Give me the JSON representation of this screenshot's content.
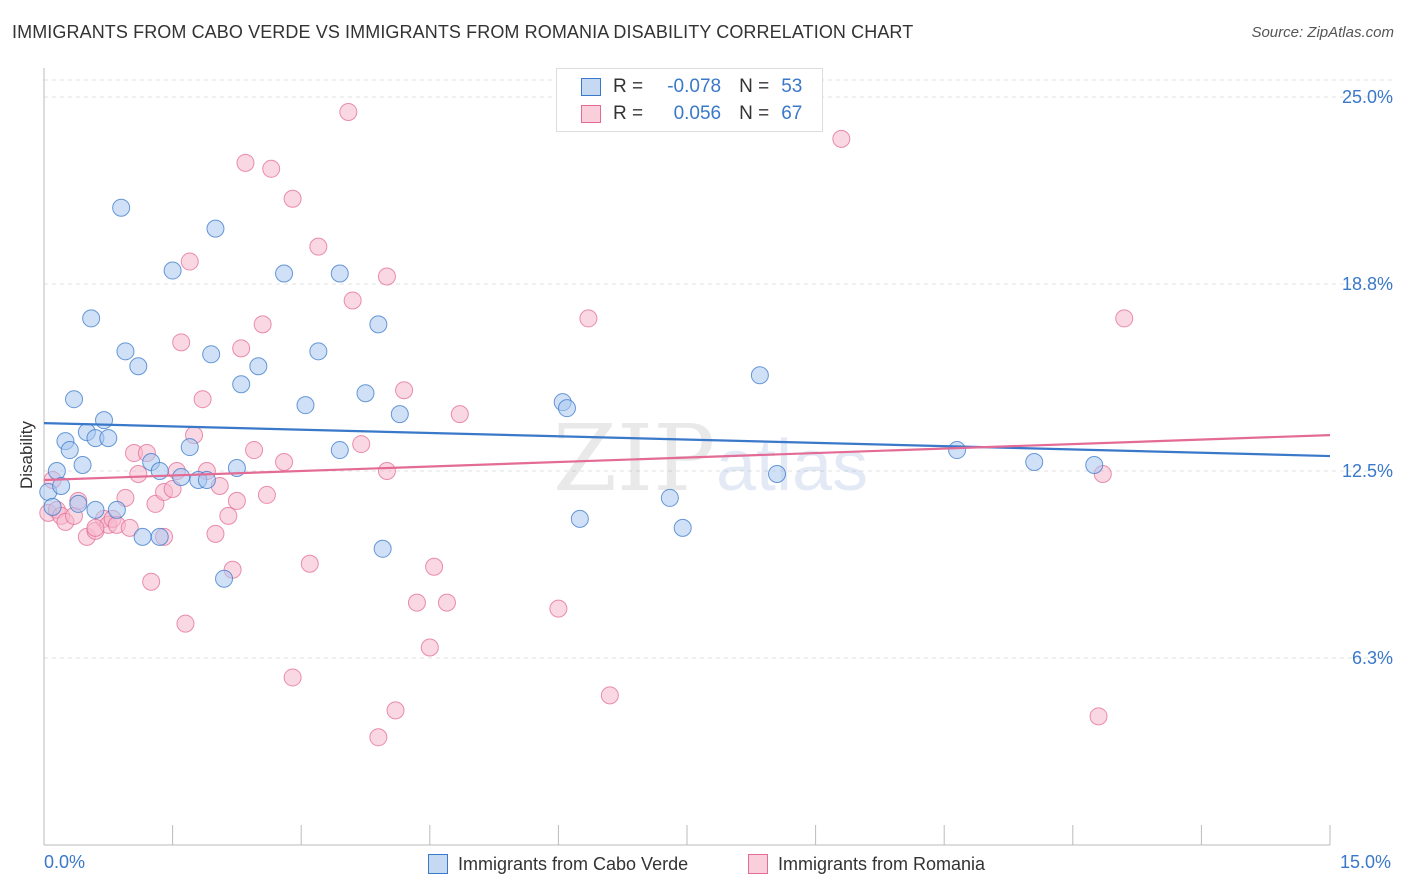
{
  "title": "IMMIGRANTS FROM CABO VERDE VS IMMIGRANTS FROM ROMANIA DISABILITY CORRELATION CHART",
  "source": "Source: ZipAtlas.com",
  "colors": {
    "blue": "#3a78c9",
    "pink": "#e36b95",
    "blue_fill": "#a9c8f0",
    "pink_fill": "#f6b8cc",
    "grid": "#e0e0e0"
  },
  "legend": {
    "r_label": "R =",
    "n_label": "N =",
    "blue": {
      "r": "-0.078",
      "n": "53"
    },
    "pink": {
      "r": "0.056",
      "n": "67"
    }
  },
  "watermark": {
    "zip": "ZIP",
    "atlas": "atlas"
  },
  "chart_data": {
    "type": "scatter",
    "title": "IMMIGRANTS FROM CABO VERDE VS IMMIGRANTS FROM ROMANIA DISABILITY CORRELATION CHART",
    "xlabel": "",
    "ylabel": "Disability",
    "xlim": [
      0,
      15
    ],
    "ylim": [
      0,
      25.5
    ],
    "x_tick_labels": [
      "0.0%",
      "15.0%"
    ],
    "y_tick_labels": [
      "6.3%",
      "12.5%",
      "18.8%",
      "25.0%"
    ],
    "y_ticks": [
      6.25,
      12.5,
      18.75,
      25.0
    ],
    "series": [
      {
        "name": "Immigrants from Cabo Verde",
        "color": "#3a78c9",
        "trend": [
          [
            0,
            14.1
          ],
          [
            15,
            13.0
          ]
        ],
        "points": [
          [
            0.05,
            11.8
          ],
          [
            0.1,
            11.3
          ],
          [
            0.15,
            12.5
          ],
          [
            0.2,
            12.0
          ],
          [
            0.25,
            13.5
          ],
          [
            0.3,
            13.2
          ],
          [
            0.35,
            14.9
          ],
          [
            0.4,
            11.4
          ],
          [
            0.45,
            12.7
          ],
          [
            0.5,
            13.8
          ],
          [
            0.55,
            17.6
          ],
          [
            0.6,
            13.6
          ],
          [
            0.7,
            14.2
          ],
          [
            0.75,
            13.6
          ],
          [
            0.85,
            11.2
          ],
          [
            0.9,
            21.3
          ],
          [
            0.95,
            16.5
          ],
          [
            1.1,
            16.0
          ],
          [
            1.15,
            10.3
          ],
          [
            1.25,
            12.8
          ],
          [
            1.35,
            12.5
          ],
          [
            1.35,
            10.3
          ],
          [
            1.5,
            19.2
          ],
          [
            1.6,
            12.3
          ],
          [
            1.7,
            13.3
          ],
          [
            1.8,
            12.2
          ],
          [
            1.9,
            12.2
          ],
          [
            1.95,
            16.4
          ],
          [
            2.0,
            20.6
          ],
          [
            2.1,
            8.9
          ],
          [
            2.25,
            12.6
          ],
          [
            2.3,
            15.4
          ],
          [
            2.5,
            16.0
          ],
          [
            2.8,
            19.1
          ],
          [
            3.05,
            14.7
          ],
          [
            3.2,
            16.5
          ],
          [
            3.45,
            19.1
          ],
          [
            3.45,
            13.2
          ],
          [
            3.75,
            15.1
          ],
          [
            3.9,
            17.4
          ],
          [
            3.95,
            9.9
          ],
          [
            4.15,
            14.4
          ],
          [
            6.05,
            14.8
          ],
          [
            6.1,
            14.6
          ],
          [
            6.25,
            10.9
          ],
          [
            7.3,
            11.6
          ],
          [
            7.45,
            10.6
          ],
          [
            8.35,
            15.7
          ],
          [
            8.55,
            12.4
          ],
          [
            10.65,
            13.2
          ],
          [
            11.55,
            12.8
          ],
          [
            12.25,
            12.7
          ],
          [
            0.6,
            11.2
          ]
        ]
      },
      {
        "name": "Immigrants from Romania",
        "color": "#e36b95",
        "trend": [
          [
            0,
            12.2
          ],
          [
            15,
            13.7
          ]
        ],
        "points": [
          [
            0.05,
            11.1
          ],
          [
            0.1,
            12.2
          ],
          [
            0.15,
            11.2
          ],
          [
            0.2,
            11.0
          ],
          [
            0.25,
            10.8
          ],
          [
            0.35,
            11.0
          ],
          [
            0.4,
            11.5
          ],
          [
            0.5,
            10.3
          ],
          [
            0.6,
            10.5
          ],
          [
            0.7,
            10.9
          ],
          [
            0.75,
            10.7
          ],
          [
            0.8,
            10.9
          ],
          [
            0.85,
            10.7
          ],
          [
            0.95,
            11.6
          ],
          [
            1.0,
            10.6
          ],
          [
            1.05,
            13.1
          ],
          [
            1.1,
            12.4
          ],
          [
            1.2,
            13.1
          ],
          [
            1.25,
            8.8
          ],
          [
            1.3,
            11.4
          ],
          [
            1.4,
            11.8
          ],
          [
            1.4,
            10.3
          ],
          [
            1.5,
            11.9
          ],
          [
            1.55,
            12.5
          ],
          [
            1.6,
            16.8
          ],
          [
            1.65,
            7.4
          ],
          [
            1.7,
            19.5
          ],
          [
            1.75,
            13.7
          ],
          [
            1.85,
            14.9
          ],
          [
            1.9,
            12.5
          ],
          [
            2.0,
            10.4
          ],
          [
            2.05,
            12.0
          ],
          [
            2.15,
            11.0
          ],
          [
            2.2,
            9.2
          ],
          [
            2.25,
            11.5
          ],
          [
            2.3,
            16.6
          ],
          [
            2.35,
            22.8
          ],
          [
            2.45,
            13.2
          ],
          [
            2.55,
            17.4
          ],
          [
            2.6,
            11.7
          ],
          [
            2.65,
            22.6
          ],
          [
            2.8,
            12.8
          ],
          [
            2.9,
            21.6
          ],
          [
            2.9,
            5.6
          ],
          [
            3.1,
            9.4
          ],
          [
            3.2,
            20.0
          ],
          [
            3.6,
            18.2
          ],
          [
            3.7,
            13.4
          ],
          [
            3.9,
            3.6
          ],
          [
            4.0,
            12.5
          ],
          [
            4.0,
            19.0
          ],
          [
            4.1,
            4.5
          ],
          [
            4.2,
            15.2
          ],
          [
            4.35,
            8.1
          ],
          [
            4.5,
            6.6
          ],
          [
            4.55,
            9.3
          ],
          [
            4.7,
            8.1
          ],
          [
            4.85,
            14.4
          ],
          [
            3.55,
            24.5
          ],
          [
            6.0,
            7.9
          ],
          [
            6.35,
            17.6
          ],
          [
            6.6,
            5.0
          ],
          [
            9.3,
            23.6
          ],
          [
            12.35,
            12.4
          ],
          [
            12.6,
            17.6
          ],
          [
            12.3,
            4.3
          ],
          [
            0.6,
            10.6
          ]
        ]
      }
    ]
  },
  "x_axis": {
    "min_label": "0.0%",
    "max_label": "15.0%"
  },
  "bottom_legend": {
    "blue": "Immigrants from Cabo Verde",
    "pink": "Immigrants from Romania"
  }
}
